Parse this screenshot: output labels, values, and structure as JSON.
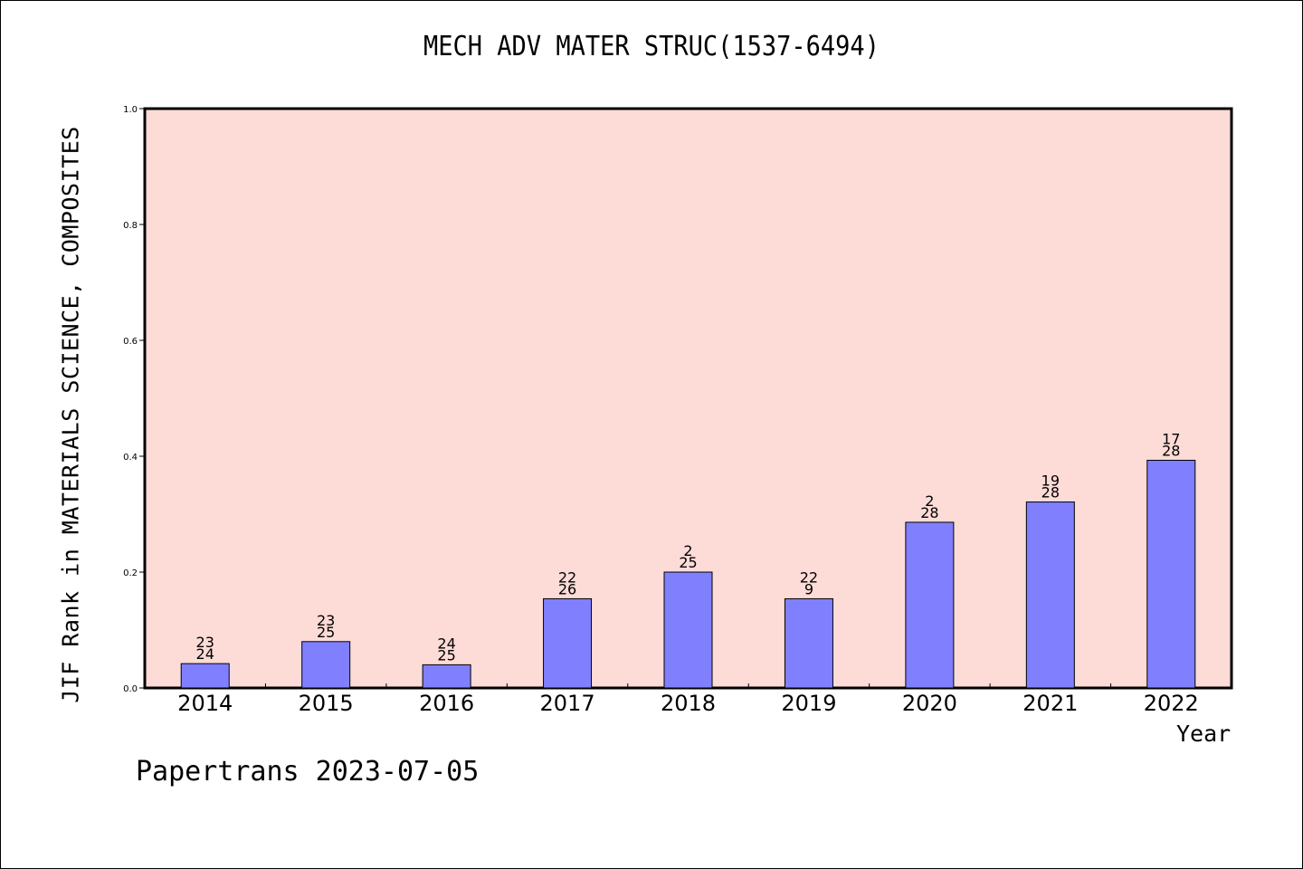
{
  "chart_data": {
    "type": "bar",
    "title": "MECH ADV MATER STRUC(1537-6494)",
    "xlabel": "Year",
    "ylabel": "JIF Rank in MATERIALS SCIENCE, COMPOSITES",
    "ylim": [
      0,
      1.0
    ],
    "yticks": [
      "0.0",
      "0.2",
      "0.4",
      "0.6",
      "0.8",
      "1.0"
    ],
    "categories": [
      "2014",
      "2015",
      "2016",
      "2017",
      "2018",
      "2019",
      "2020",
      "2021",
      "2022"
    ],
    "values": [
      0.042,
      0.08,
      0.04,
      0.154,
      0.2,
      0.154,
      0.286,
      0.321,
      0.393
    ],
    "labels_top": [
      "23",
      "23",
      "24",
      "22",
      "2",
      "22",
      "2",
      "19",
      "17"
    ],
    "labels_bottom": [
      "24",
      "25",
      "25",
      "26",
      "25",
      "9",
      "28",
      "28",
      "28"
    ],
    "grid": false,
    "plot_background": "#fddbd7",
    "bar_color": "#8080ff"
  },
  "footer": "Papertrans 2023-07-05"
}
